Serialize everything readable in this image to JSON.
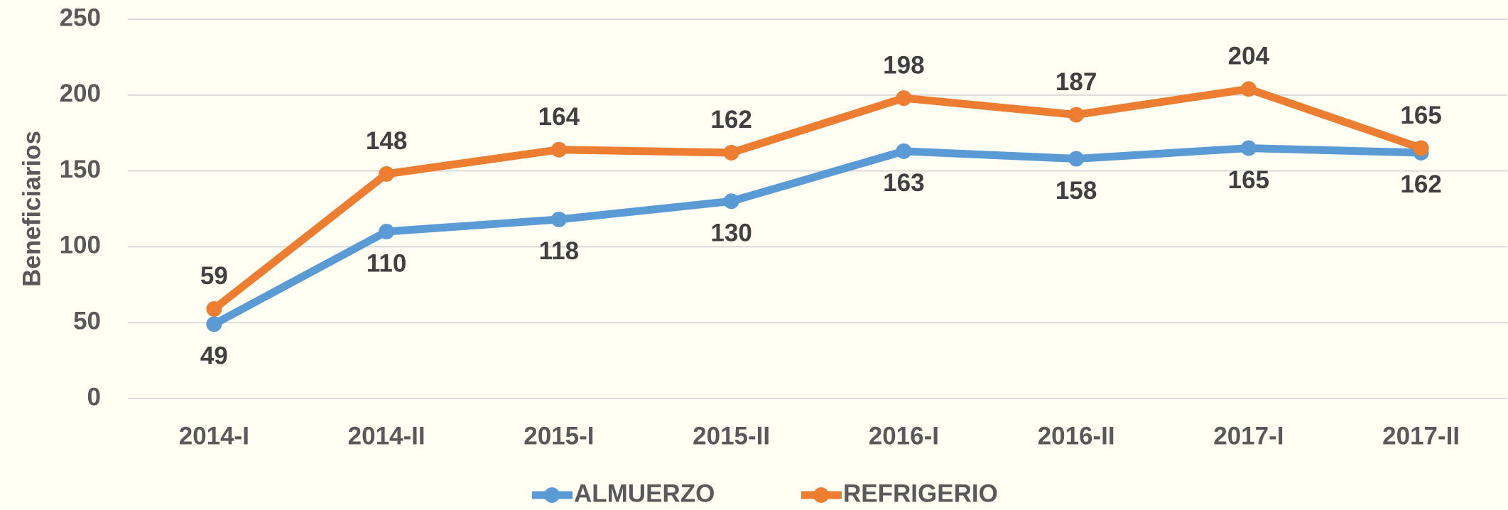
{
  "chart_data": {
    "type": "line",
    "y_label": "Beneficiarios",
    "categories": [
      "2014-I",
      "2014-II",
      "2015-I",
      "2015-II",
      "2016-I",
      "2016-II",
      "2017-I",
      "2017-II"
    ],
    "series": [
      {
        "name": "ALMUERZO",
        "color": "#5b9bd5",
        "values": [
          49,
          110,
          118,
          130,
          163,
          158,
          165,
          162
        ],
        "label_position": "below"
      },
      {
        "name": "REFRIGERIO",
        "color": "#ed7d31",
        "values": [
          59,
          148,
          164,
          162,
          198,
          187,
          204,
          165
        ],
        "label_position": "above"
      }
    ],
    "ylim": [
      0,
      250
    ],
    "yticks": [
      0,
      50,
      100,
      150,
      200,
      250
    ],
    "grid": true,
    "legend": "bottom"
  }
}
